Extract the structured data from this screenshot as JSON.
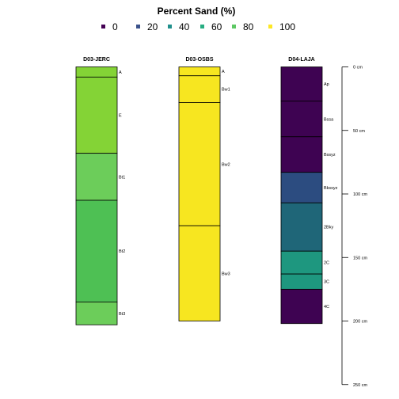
{
  "chart_data": {
    "type": "soil-profile",
    "title": "Percent Sand (%)",
    "depth_units": "cm",
    "depth_range": [
      0,
      250
    ],
    "depth_ticks": [
      0,
      50,
      100,
      150,
      200,
      250
    ],
    "depth_tick_labels": [
      "0 cm",
      "50 cm",
      "100 cm",
      "150 cm",
      "200 cm",
      "250 cm"
    ],
    "legend": {
      "title": "Percent Sand (%)",
      "placement": "top-center",
      "items": [
        {
          "label": "0",
          "color": "#440154"
        },
        {
          "label": "20",
          "color": "#3B528B"
        },
        {
          "label": "40",
          "color": "#21908C"
        },
        {
          "label": "60",
          "color": "#27AD81"
        },
        {
          "label": "80",
          "color": "#5DC863"
        },
        {
          "label": "100",
          "color": "#FDE725"
        }
      ]
    },
    "profiles": [
      {
        "id": "D03-JERC",
        "horizons": [
          {
            "name": "A",
            "top": 0,
            "bottom": 8,
            "sand": 85,
            "color": "#84D336"
          },
          {
            "name": "E",
            "top": 8,
            "bottom": 68,
            "sand": 84,
            "color": "#84D336"
          },
          {
            "name": "Bt1",
            "top": 68,
            "bottom": 105,
            "sand": 78,
            "color": "#6CCD5A"
          },
          {
            "name": "Bt2",
            "top": 105,
            "bottom": 185,
            "sand": 74,
            "color": "#4EC054"
          },
          {
            "name": "Bt3",
            "top": 185,
            "bottom": 203,
            "sand": 79,
            "color": "#6CCD5A"
          }
        ]
      },
      {
        "id": "D03-OSBS",
        "horizons": [
          {
            "name": "A",
            "top": 0,
            "bottom": 7,
            "sand": 97,
            "color": "#F7E620"
          },
          {
            "name": "Bw1",
            "top": 7,
            "bottom": 28,
            "sand": 97,
            "color": "#F7E620"
          },
          {
            "name": "Bw2",
            "top": 28,
            "bottom": 125,
            "sand": 97,
            "color": "#F7E620"
          },
          {
            "name": "Bw3",
            "top": 125,
            "bottom": 200,
            "sand": 97,
            "color": "#F7E620"
          }
        ]
      },
      {
        "id": "D04-LAJA",
        "horizons": [
          {
            "name": "Ap",
            "top": 0,
            "bottom": 27,
            "sand": 2,
            "color": "#3E0352"
          },
          {
            "name": "Bssa",
            "top": 27,
            "bottom": 55,
            "sand": 2,
            "color": "#3E0352"
          },
          {
            "name": "Bssyz",
            "top": 55,
            "bottom": 83,
            "sand": 2,
            "color": "#3E0352"
          },
          {
            "name": "Bkssyz",
            "top": 83,
            "bottom": 107,
            "sand": 22,
            "color": "#2C4C80"
          },
          {
            "name": "2Bky",
            "top": 107,
            "bottom": 145,
            "sand": 32,
            "color": "#1F6678"
          },
          {
            "name": "2C",
            "top": 145,
            "bottom": 163,
            "sand": 52,
            "color": "#1E977F"
          },
          {
            "name": "3C",
            "top": 163,
            "bottom": 175,
            "sand": 52,
            "color": "#1E977F"
          },
          {
            "name": "4C",
            "top": 175,
            "bottom": 202,
            "sand": 2,
            "color": "#3E0352"
          }
        ]
      }
    ]
  }
}
